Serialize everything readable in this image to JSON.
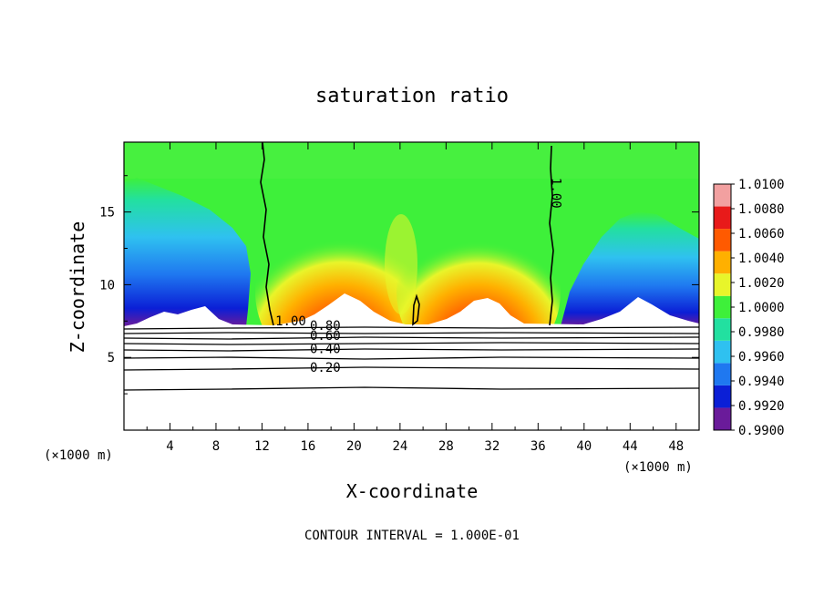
{
  "chart_data": {
    "type": "heatmap",
    "title": "saturation ratio",
    "xlabel": "X-coordinate",
    "ylabel": "Z-coordinate",
    "x_unit": "(×1000 m)",
    "y_unit": "(×1000 m)",
    "footer": "CONTOUR INTERVAL = 1.000E-01",
    "xlim": [
      0,
      50
    ],
    "ylim": [
      0,
      19.8
    ],
    "x_ticks": [
      4,
      8,
      12,
      16,
      20,
      24,
      28,
      32,
      36,
      40,
      44,
      48
    ],
    "y_ticks": [
      5,
      10,
      15
    ],
    "colorbar": {
      "levels": [
        "0.9900",
        "0.9920",
        "0.9940",
        "0.9960",
        "0.9980",
        "1.0000",
        "1.0020",
        "1.0040",
        "1.0060",
        "1.0080",
        "1.0100"
      ],
      "colors": [
        "#6a1b9a",
        "#0b1fd6",
        "#1f78f0",
        "#2fc1f0",
        "#22e0a0",
        "#3ef03a",
        "#e8f52a",
        "#ffb000",
        "#ff5a00",
        "#e81a1a",
        "#f2a0a0"
      ]
    },
    "contour_labels": [
      {
        "text": "1.00",
        "x": 14.5,
        "y": 7.2
      },
      {
        "text": "1.00",
        "x": 37.2,
        "y": 16.3
      },
      {
        "text": "0.80",
        "x": 17.5,
        "y": 6.9
      },
      {
        "text": "0.60",
        "x": 17.5,
        "y": 6.2
      },
      {
        "text": "0.40",
        "x": 17.5,
        "y": 5.3
      },
      {
        "text": "0.20",
        "x": 17.5,
        "y": 4.0
      }
    ],
    "unsaturated_layer_top": 7.3,
    "contours_below": [
      7.2,
      6.9,
      6.6,
      6.2,
      5.7,
      5.3,
      4.4,
      3.0
    ]
  }
}
